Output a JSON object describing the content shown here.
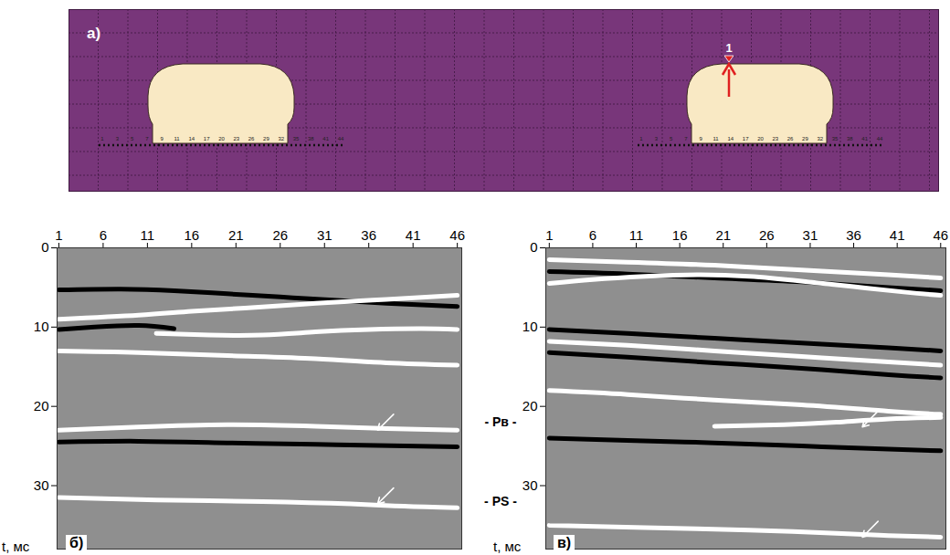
{
  "model": {
    "label": "а)",
    "source_label": "1",
    "receiver_numbers": [
      1,
      3,
      5,
      7,
      9,
      11,
      14,
      17,
      20,
      23,
      26,
      29,
      32,
      35,
      38,
      41,
      44
    ]
  },
  "chart_data": [
    {
      "type": "line",
      "panel": "б)",
      "y_label": "t, мс",
      "xlim": [
        0.8,
        46.5
      ],
      "xticks": [
        1,
        6,
        11,
        16,
        21,
        26,
        31,
        36,
        41,
        46
      ],
      "ylim": [
        0,
        38
      ],
      "yticks": [
        0,
        10,
        20,
        30
      ],
      "series": [
        {
          "color": "#000000",
          "x": [
            1,
            8,
            14,
            20,
            26,
            32,
            38,
            46
          ],
          "values": [
            5.3,
            5.2,
            5.4,
            5.8,
            6.2,
            6.6,
            7.0,
            7.4
          ]
        },
        {
          "color": "#ffffff",
          "x": [
            1,
            10,
            16,
            22,
            30,
            38,
            46
          ],
          "values": [
            9.0,
            8.5,
            8.0,
            7.6,
            7.0,
            6.5,
            6.0
          ]
        },
        {
          "color": "#000000",
          "x": [
            1,
            5,
            10,
            14
          ],
          "values": [
            10.3,
            10.0,
            9.8,
            10.2
          ]
        },
        {
          "color": "#ffffff",
          "x": [
            12,
            18,
            24,
            30,
            36,
            42,
            46
          ],
          "values": [
            10.8,
            11.0,
            11.0,
            10.6,
            10.3,
            10.2,
            10.3
          ]
        },
        {
          "color": "#ffffff",
          "x": [
            1,
            10,
            20,
            30,
            38,
            46
          ],
          "values": [
            13.0,
            13.2,
            13.6,
            14.0,
            14.5,
            14.8
          ]
        },
        {
          "color": "#ffffff",
          "x": [
            1,
            10,
            20,
            30,
            38,
            46
          ],
          "values": [
            23.0,
            22.6,
            22.3,
            22.5,
            22.8,
            23.0
          ]
        },
        {
          "color": "#000000",
          "x": [
            1,
            10,
            20,
            30,
            40,
            46
          ],
          "values": [
            24.5,
            24.4,
            24.6,
            24.8,
            25.0,
            25.1
          ]
        },
        {
          "color": "#ffffff",
          "x": [
            1,
            12,
            24,
            34,
            40,
            46
          ],
          "values": [
            31.5,
            31.8,
            32.0,
            32.3,
            32.6,
            32.8
          ]
        }
      ],
      "arrows": [
        {
          "x": 37,
          "y": 23.0
        },
        {
          "x": 37,
          "y": 32.3
        }
      ]
    },
    {
      "type": "line",
      "panel": "в)",
      "y_label": "t, мс",
      "xlim": [
        0.6,
        46.6
      ],
      "xticks": [
        1,
        6,
        11,
        16,
        21,
        26,
        31,
        36,
        41,
        46
      ],
      "ylim": [
        0,
        38
      ],
      "yticks": [
        0,
        10,
        20,
        30
      ],
      "series": [
        {
          "color": "#ffffff",
          "x": [
            1,
            10,
            20,
            30,
            40,
            46
          ],
          "values": [
            1.5,
            1.8,
            2.2,
            2.8,
            3.4,
            3.8
          ]
        },
        {
          "color": "#000000",
          "x": [
            1,
            10,
            20,
            30,
            40,
            46
          ],
          "values": [
            3.0,
            3.3,
            3.8,
            4.3,
            5.0,
            5.4
          ]
        },
        {
          "color": "#ffffff",
          "x": [
            1,
            6,
            12,
            18,
            24,
            30,
            36,
            42,
            46
          ],
          "values": [
            4.5,
            4.0,
            3.6,
            3.4,
            3.6,
            4.2,
            4.9,
            5.6,
            6.0
          ]
        },
        {
          "color": "#000000",
          "x": [
            1,
            10,
            20,
            30,
            40,
            46
          ],
          "values": [
            10.3,
            10.8,
            11.4,
            12.0,
            12.6,
            13.0
          ]
        },
        {
          "color": "#ffffff",
          "x": [
            1,
            10,
            20,
            30,
            40,
            46
          ],
          "values": [
            11.8,
            12.3,
            13.0,
            13.7,
            14.4,
            14.8
          ]
        },
        {
          "color": "#000000",
          "x": [
            1,
            10,
            20,
            30,
            40,
            46
          ],
          "values": [
            13.2,
            13.8,
            14.5,
            15.2,
            16.0,
            16.4
          ]
        },
        {
          "color": "#ffffff",
          "x": [
            1,
            10,
            20,
            30,
            40,
            46
          ],
          "values": [
            18.0,
            18.5,
            19.2,
            19.8,
            20.6,
            21.0
          ]
        },
        {
          "color": "#ffffff",
          "x": [
            20,
            28,
            34,
            40,
            46
          ],
          "values": [
            22.5,
            22.3,
            22.0,
            21.6,
            21.4
          ]
        },
        {
          "color": "#000000",
          "x": [
            1,
            10,
            20,
            30,
            40,
            46
          ],
          "values": [
            24.0,
            24.3,
            24.6,
            25.0,
            25.4,
            25.6
          ]
        },
        {
          "color": "#ffffff",
          "x": [
            1,
            12,
            24,
            34,
            40,
            46
          ],
          "values": [
            35.0,
            35.3,
            35.6,
            36.0,
            36.3,
            36.5
          ]
        }
      ],
      "arrows": [
        {
          "x": 37,
          "y": 22.6
        },
        {
          "x": 37,
          "y": 36.5
        }
      ]
    }
  ],
  "wave_labels": [
    {
      "text": "- Pв -",
      "y": 22
    },
    {
      "text": "- PS -",
      "y": 32
    }
  ]
}
